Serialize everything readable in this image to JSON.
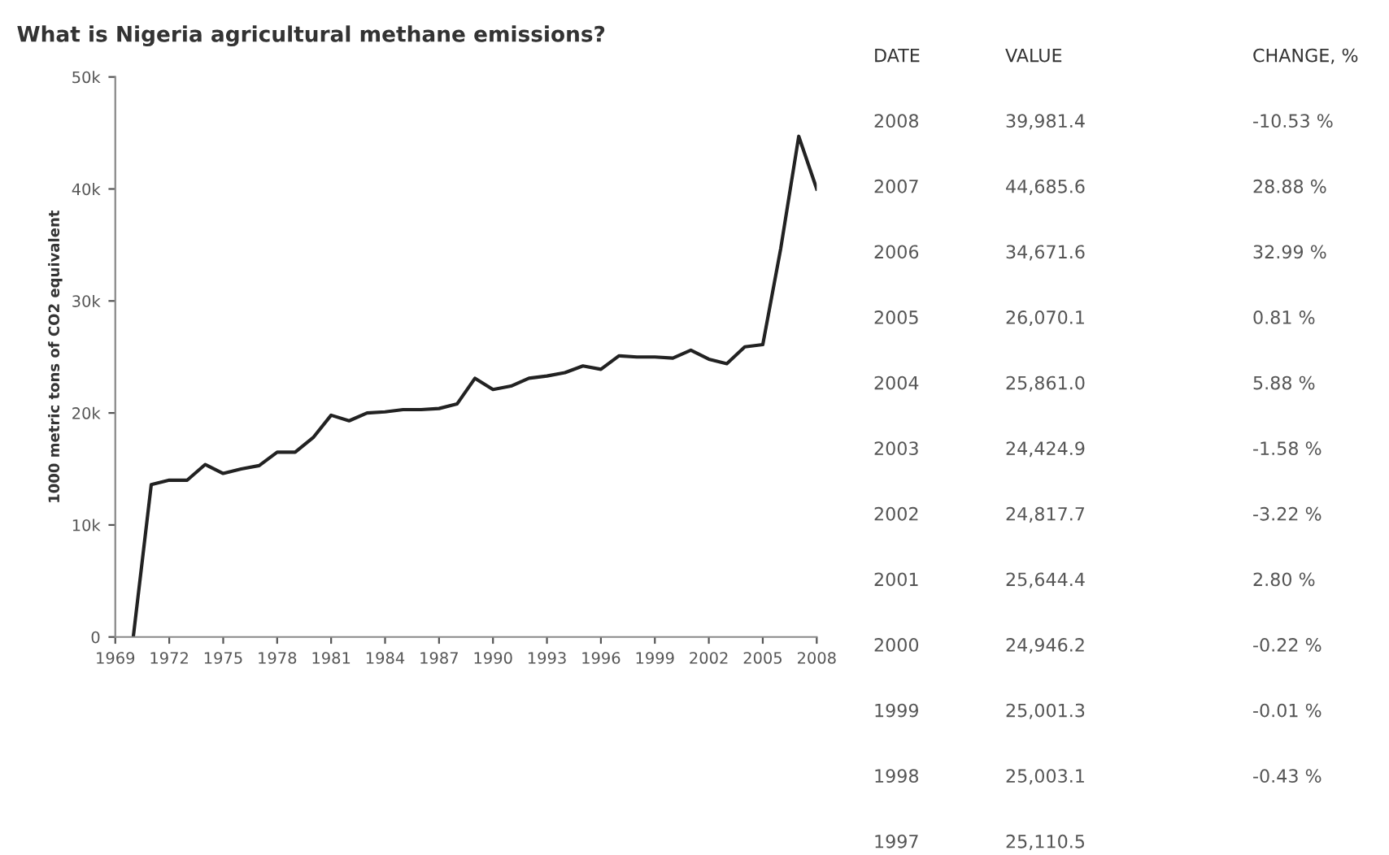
{
  "chart_data": {
    "type": "line",
    "title": "What is Nigeria agricultural methane emissions?",
    "ylabel": "1000 metric tons of CO2 equivalent",
    "x": [
      1970,
      1971,
      1972,
      1973,
      1974,
      1975,
      1976,
      1977,
      1978,
      1979,
      1980,
      1981,
      1982,
      1983,
      1984,
      1985,
      1986,
      1987,
      1988,
      1989,
      1990,
      1991,
      1992,
      1993,
      1994,
      1995,
      1996,
      1997,
      1998,
      1999,
      2000,
      2001,
      2002,
      2003,
      2004,
      2005,
      2006,
      2007,
      2008
    ],
    "series": [
      {
        "color": "#222222",
        "values": [
          0,
          13600,
          14000,
          14000,
          15400,
          14600,
          15000,
          15300,
          16500,
          16500,
          17800,
          19800,
          19300,
          20000,
          20100,
          20300,
          20300,
          20400,
          20800,
          23100,
          22100,
          22400,
          23100,
          23300,
          23600,
          24200,
          23900,
          25100,
          25000,
          25000,
          24900,
          25600,
          24800,
          24400,
          25900,
          26100,
          34700,
          44700,
          40000
        ]
      }
    ],
    "xlim": [
      1969,
      2008
    ],
    "xticks": [
      1969,
      1972,
      1975,
      1978,
      1981,
      1984,
      1987,
      1990,
      1993,
      1996,
      1999,
      2002,
      2005,
      2008
    ],
    "ylim": [
      0,
      50000
    ],
    "yticks": [
      0,
      {
        "value": 10000,
        "label": "10k"
      },
      {
        "value": 20000,
        "label": "20k"
      },
      {
        "value": 30000,
        "label": "30k"
      },
      {
        "value": 40000,
        "label": "40k"
      },
      {
        "value": 50000,
        "label": "50k"
      }
    ],
    "grid": false,
    "legend": false,
    "marker": "none",
    "line_style": "solid",
    "annotations": [
      "DATE",
      "VALUE",
      "CHANGE, %",
      "2008",
      "39,981.4",
      "-10.53 %",
      "2007",
      "44,685.6",
      "28.88 %",
      "2006",
      "34,671.6",
      "32.99 %",
      "2005",
      "26,070.1",
      "0.81 %",
      "2004",
      "25,861.0",
      "5.88 %",
      "2003",
      "24,424.9",
      "-1.58 %",
      "2002",
      "24,817.7",
      "-3.22 %",
      "2001",
      "25,644.4",
      "2.80 %",
      "2000",
      "24,946.2",
      "-0.22 %",
      "1999",
      "25,001.3",
      "-0.01 %",
      "1998",
      "25,003.1",
      "-0.43 %",
      "1997",
      "25,110.5"
    ]
  }
}
